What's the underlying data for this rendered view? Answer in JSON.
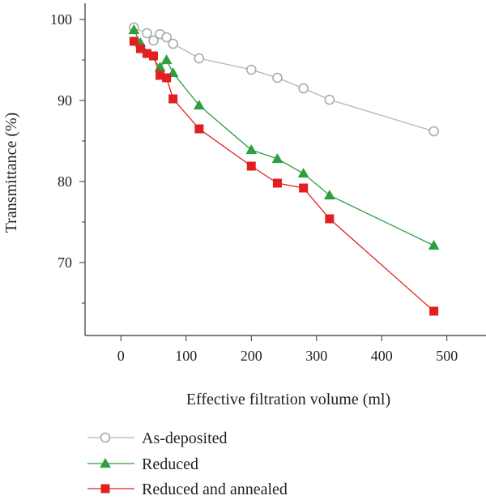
{
  "chart_data": {
    "type": "line",
    "xlabel": "Effective filtration volume (ml)",
    "ylabel": "Transmittance (%)",
    "xlim": [
      -55,
      560
    ],
    "ylim": [
      61,
      102
    ],
    "x_ticks": [
      0,
      100,
      200,
      300,
      400,
      500
    ],
    "y_ticks_labeled": [
      70,
      80,
      90,
      100
    ],
    "y_ticks_minor": [
      65,
      75,
      85,
      95
    ],
    "grid": false,
    "legend_placement": "below plot",
    "series": [
      {
        "name": "As-deposited",
        "marker": "open-circle",
        "color": "#aaaaaa",
        "line_color": "#b3b3c7",
        "x": [
          20,
          40,
          50,
          60,
          70,
          80,
          120,
          200,
          240,
          280,
          320,
          480
        ],
        "y": [
          99.0,
          98.3,
          97.4,
          98.2,
          97.8,
          97.0,
          95.2,
          93.8,
          92.8,
          91.5,
          90.1,
          86.2
        ]
      },
      {
        "name": "Reduced",
        "marker": "triangle",
        "color": "#2e9e3e",
        "line_color": "#2e9e3e",
        "x": [
          20,
          30,
          60,
          70,
          80,
          120,
          200,
          240,
          280,
          320,
          480
        ],
        "y": [
          98.7,
          97.1,
          94.1,
          95.0,
          93.4,
          89.4,
          83.9,
          82.8,
          81.0,
          78.3,
          72.1
        ]
      },
      {
        "name": "Reduced and annealed",
        "marker": "square",
        "color": "#e02020",
        "line_color": "#e02020",
        "x": [
          20,
          30,
          40,
          50,
          60,
          70,
          80,
          120,
          200,
          240,
          280,
          320,
          480
        ],
        "y": [
          97.3,
          96.4,
          95.8,
          95.5,
          93.1,
          92.8,
          90.2,
          86.5,
          81.9,
          79.8,
          79.2,
          75.4,
          64.0
        ]
      }
    ]
  }
}
